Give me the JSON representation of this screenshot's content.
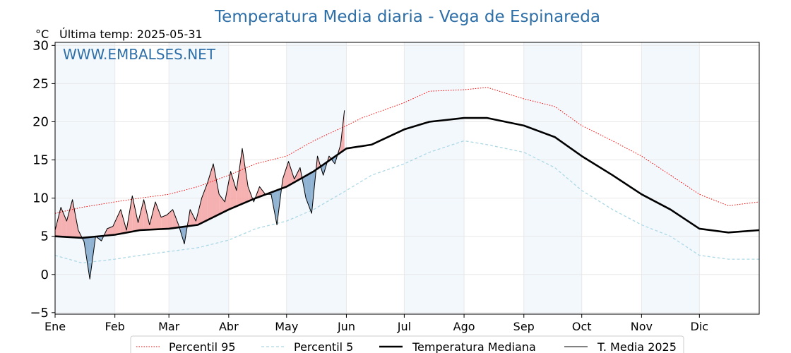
{
  "chart_data": {
    "type": "line",
    "title": "Temperatura Media diaria - Vega de Espinareda",
    "unit_label": "°C",
    "last_temp_label": "Última temp: 2025-05-31",
    "watermark": "WWW.EMBALSES.NET",
    "xlabel": "",
    "ylabel": "",
    "x_unit": "day of year",
    "xlim": [
      1,
      366
    ],
    "ylim": [
      -5.2,
      30.4
    ],
    "yticks": [
      -5,
      0,
      5,
      10,
      15,
      20,
      25,
      30
    ],
    "ytick_labels": [
      "−5",
      "0",
      "5",
      "10",
      "15",
      "20",
      "25",
      "30"
    ],
    "months": [
      {
        "label": "Ene",
        "start": 1
      },
      {
        "label": "Feb",
        "start": 32
      },
      {
        "label": "Mar",
        "start": 60
      },
      {
        "label": "Abr",
        "start": 91
      },
      {
        "label": "May",
        "start": 121
      },
      {
        "label": "Jun",
        "start": 152
      },
      {
        "label": "Jul",
        "start": 182
      },
      {
        "label": "Ago",
        "start": 213
      },
      {
        "label": "Sep",
        "start": 244
      },
      {
        "label": "Oct",
        "start": 274
      },
      {
        "label": "Nov",
        "start": 305
      },
      {
        "label": "Dic",
        "start": 335
      }
    ],
    "grid": true,
    "legend_position": "bottom",
    "series": [
      {
        "name": "Percentil 95",
        "color": "#ff0000",
        "style": "dotted",
        "x": [
          1,
          15,
          32,
          45,
          60,
          75,
          91,
          105,
          121,
          135,
          152,
          160,
          182,
          195,
          213,
          225,
          244,
          260,
          274,
          290,
          305,
          320,
          335,
          350,
          366
        ],
        "y": [
          8.0,
          8.8,
          9.5,
          10.0,
          10.5,
          11.5,
          13.0,
          14.5,
          15.5,
          17.5,
          19.5,
          20.5,
          22.5,
          24.0,
          24.2,
          24.5,
          23.0,
          22.0,
          19.5,
          17.5,
          15.5,
          13.0,
          10.5,
          9.0,
          9.5
        ]
      },
      {
        "name": "Percentil 5",
        "color": "#add8e6",
        "style": "dashed",
        "x": [
          1,
          15,
          32,
          45,
          60,
          75,
          91,
          105,
          121,
          135,
          152,
          165,
          182,
          195,
          213,
          225,
          244,
          260,
          274,
          290,
          305,
          320,
          335,
          350,
          366
        ],
        "y": [
          2.5,
          1.5,
          2.0,
          2.5,
          3.0,
          3.5,
          4.5,
          6.0,
          7.0,
          8.5,
          11.0,
          13.0,
          14.5,
          16.0,
          17.5,
          17.0,
          16.0,
          14.0,
          11.0,
          8.5,
          6.5,
          5.0,
          2.5,
          2.0,
          2.0
        ]
      },
      {
        "name": "Temperatura Mediana",
        "color": "#000000",
        "style": "solid-thick",
        "x": [
          1,
          15,
          32,
          45,
          60,
          75,
          91,
          105,
          121,
          135,
          152,
          165,
          182,
          195,
          213,
          225,
          244,
          260,
          274,
          290,
          305,
          320,
          335,
          350,
          366
        ],
        "y": [
          5.0,
          4.8,
          5.2,
          5.8,
          6.0,
          6.5,
          8.5,
          10.0,
          11.5,
          13.5,
          16.5,
          17.0,
          19.0,
          20.0,
          20.5,
          20.5,
          19.5,
          18.0,
          15.5,
          13.0,
          10.5,
          8.5,
          6.0,
          5.5,
          5.8
        ]
      },
      {
        "name": "T. Media 2025",
        "color": "#000000",
        "style": "solid-thin",
        "x": [
          1,
          4,
          7,
          10,
          13,
          16,
          19,
          22,
          25,
          28,
          31,
          35,
          38,
          41,
          44,
          47,
          50,
          53,
          56,
          59,
          62,
          65,
          68,
          71,
          74,
          77,
          80,
          83,
          86,
          89,
          92,
          95,
          98,
          101,
          104,
          107,
          110,
          113,
          116,
          119,
          122,
          125,
          128,
          131,
          134,
          137,
          140,
          143,
          146,
          149,
          151
        ],
        "y": [
          5.8,
          8.8,
          7.0,
          9.8,
          5.8,
          4.3,
          -0.6,
          5.0,
          4.4,
          6.0,
          6.3,
          8.5,
          5.8,
          10.3,
          6.8,
          9.8,
          6.5,
          9.5,
          7.5,
          7.8,
          8.5,
          6.5,
          4.0,
          8.5,
          7.0,
          10.0,
          12.0,
          14.5,
          10.5,
          9.5,
          13.5,
          11.0,
          16.5,
          11.5,
          9.5,
          11.5,
          10.5,
          10.5,
          6.5,
          12.5,
          14.8,
          12.5,
          14.0,
          10.0,
          8.0,
          15.5,
          13.0,
          15.5,
          14.5,
          17.0,
          21.5
        ]
      }
    ]
  }
}
